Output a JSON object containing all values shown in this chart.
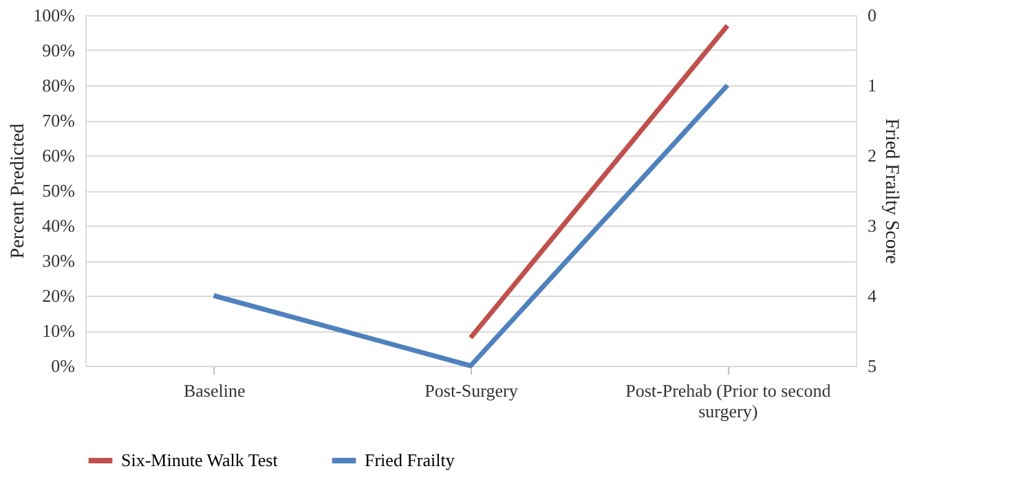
{
  "chart_data": {
    "type": "line",
    "categories": [
      "Baseline",
      "Post-Surgery",
      "Post-Prehab (Prior to second surgery)"
    ],
    "series": [
      {
        "name": "Six-Minute Walk Test",
        "color": "#c0504d",
        "values": [
          null,
          8,
          97
        ]
      },
      {
        "name": "Fried Frailty",
        "color": "#4f81bd",
        "values": [
          4,
          5,
          1
        ],
        "axis": "y2"
      }
    ],
    "ylabel": "Percent Predicted",
    "y2label": "Fried Frailty Score",
    "ylim": [
      0,
      100
    ],
    "yticks": [
      {
        "value": 0,
        "label": "0%"
      },
      {
        "value": 10,
        "label": "10%"
      },
      {
        "value": 20,
        "label": "20%"
      },
      {
        "value": 30,
        "label": "30%"
      },
      {
        "value": 40,
        "label": "40%"
      },
      {
        "value": 50,
        "label": "50%"
      },
      {
        "value": 60,
        "label": "60%"
      },
      {
        "value": 70,
        "label": "70%"
      },
      {
        "value": 80,
        "label": "80%"
      },
      {
        "value": 90,
        "label": "90%"
      },
      {
        "value": 100,
        "label": "100%"
      }
    ],
    "y2lim": [
      5,
      0
    ],
    "y2ticks": [
      0,
      1,
      2,
      3,
      4,
      5
    ],
    "grid": "y",
    "legend": "bottom",
    "marker": "none",
    "line_style": "solid"
  }
}
